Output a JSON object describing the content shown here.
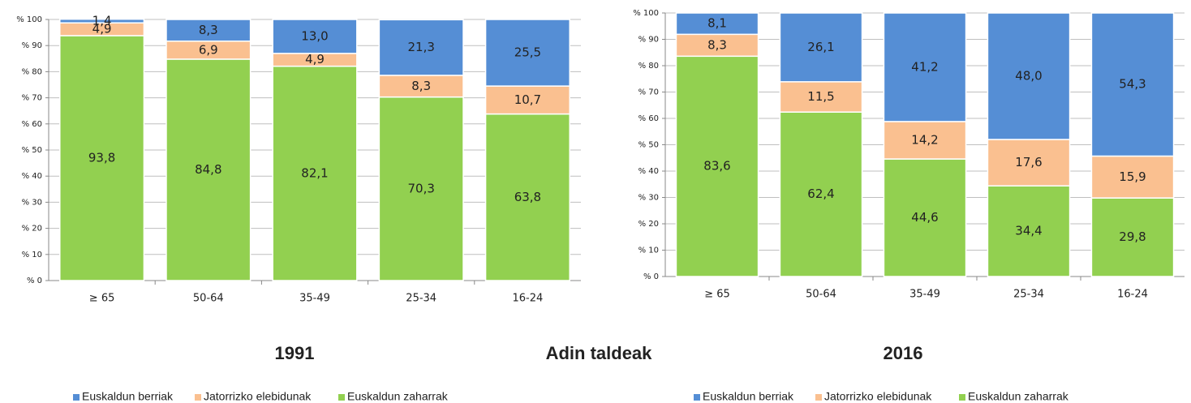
{
  "xlabel": "Adin taldeak",
  "chart_data": [
    {
      "type": "stacked_bar",
      "title": "1991",
      "categories": [
        "≥ 65",
        "50-64",
        "35-49",
        "25-34",
        "16-24"
      ],
      "series": [
        {
          "name": "Euskaldun berriak",
          "color": "#558ed5",
          "values": [
            1.4,
            8.3,
            13.0,
            21.3,
            25.5
          ],
          "value_labels": [
            "1,4",
            "8,3",
            "13,0",
            "21,3",
            "25,5"
          ]
        },
        {
          "name": "Jatorrizko elebidunak",
          "color": "#fac090",
          "values": [
            4.9,
            6.9,
            4.9,
            8.3,
            10.7
          ],
          "value_labels": [
            "4,9",
            "6,9",
            "4,9",
            "8,3",
            "10,7"
          ]
        },
        {
          "name": "Euskaldun zaharrak",
          "color": "#92d050",
          "values": [
            93.8,
            84.8,
            82.1,
            70.3,
            63.8
          ],
          "value_labels": [
            "93,8",
            "84,8",
            "82,1",
            "70,3",
            "63,8"
          ]
        }
      ],
      "ylim": [
        0,
        100
      ],
      "yticks": [
        {
          "value": 0,
          "label": "% 0"
        },
        {
          "value": 10,
          "label": "% 10"
        },
        {
          "value": 20,
          "label": "% 20"
        },
        {
          "value": 30,
          "label": "% 30"
        },
        {
          "value": 40,
          "label": "% 40"
        },
        {
          "value": 50,
          "label": "% 50"
        },
        {
          "value": 60,
          "label": "% 60"
        },
        {
          "value": 70,
          "label": "% 70"
        },
        {
          "value": 80,
          "label": "% 80"
        },
        {
          "value": 90,
          "label": "% 90"
        },
        {
          "value": 100,
          "label": "% 100"
        }
      ],
      "grid": true
    },
    {
      "type": "stacked_bar",
      "title": "2016",
      "categories": [
        "≥ 65",
        "50-64",
        "35-49",
        "25-34",
        "16-24"
      ],
      "series": [
        {
          "name": "Euskaldun berriak",
          "color": "#558ed5",
          "values": [
            8.1,
            26.1,
            41.2,
            48.0,
            54.3
          ],
          "value_labels": [
            "8,1",
            "26,1",
            "41,2",
            "48,0",
            "54,3"
          ]
        },
        {
          "name": "Jatorrizko elebidunak",
          "color": "#fac090",
          "values": [
            8.3,
            11.5,
            14.2,
            17.6,
            15.9
          ],
          "value_labels": [
            "8,3",
            "11,5",
            "14,2",
            "17,6",
            "15,9"
          ]
        },
        {
          "name": "Euskaldun zaharrak",
          "color": "#92d050",
          "values": [
            83.6,
            62.4,
            44.6,
            34.4,
            29.8
          ],
          "value_labels": [
            "83,6",
            "62,4",
            "44,6",
            "34,4",
            "29,8"
          ]
        }
      ],
      "ylim": [
        0,
        100
      ],
      "yticks": [
        {
          "value": 0,
          "label": "% 0"
        },
        {
          "value": 10,
          "label": "% 10"
        },
        {
          "value": 20,
          "label": "% 20"
        },
        {
          "value": 30,
          "label": "% 30"
        },
        {
          "value": 40,
          "label": "% 40"
        },
        {
          "value": 50,
          "label": "% 50"
        },
        {
          "value": 60,
          "label": "% 60"
        },
        {
          "value": 70,
          "label": "% 70"
        },
        {
          "value": 80,
          "label": "% 80"
        },
        {
          "value": 90,
          "label": "% 90"
        },
        {
          "value": 100,
          "label": "% 100"
        }
      ],
      "grid": true
    }
  ]
}
